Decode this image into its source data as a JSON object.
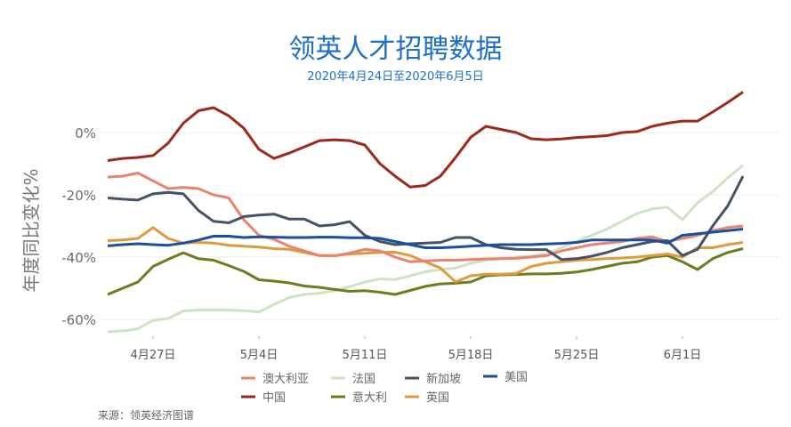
{
  "chart_data": {
    "type": "line",
    "title": "领英人才招聘数据",
    "subtitle": "2020年4月24日至2020年6月5日",
    "ylabel": "年度同比变化%",
    "xlabel": "",
    "x_start": "2020-04-24",
    "x_end": "2020-06-05",
    "x_ticks": [
      {
        "date": "2020-04-27",
        "label": "4月27日"
      },
      {
        "date": "2020-05-04",
        "label": "5月4日"
      },
      {
        "date": "2020-05-11",
        "label": "5月11日"
      },
      {
        "date": "2020-05-18",
        "label": "5月18日"
      },
      {
        "date": "2020-05-25",
        "label": "5月25日"
      },
      {
        "date": "2020-06-01",
        "label": "6月1日"
      }
    ],
    "y_ticks": [
      {
        "value": 0,
        "label": "0%"
      },
      {
        "value": -20,
        "label": "-20%"
      },
      {
        "value": -40,
        "label": "-40%"
      },
      {
        "value": -60,
        "label": "-60%"
      }
    ],
    "ylim": [
      -66,
      14
    ],
    "grid": "horizontal",
    "legend_placement": "bottom",
    "series": [
      {
        "name": "澳大利亚",
        "color": "#e8846e",
        "values": [
          -14.3,
          -14,
          -13,
          -15.5,
          -18,
          -17.6,
          -18,
          -20,
          -21,
          -28,
          -33,
          -34.3,
          -36.5,
          -38,
          -39.5,
          -39.6,
          -38.7,
          -37.5,
          -38,
          -40,
          -41.5,
          -41.2,
          -41,
          -41,
          -40.8,
          -40.6,
          -40.5,
          -40.4,
          -40,
          -39.5,
          -38,
          -37,
          -36,
          -35.5,
          -35,
          -34,
          -33.5,
          -35,
          -34,
          -33,
          -31.5,
          -30.5,
          -30
        ]
      },
      {
        "name": "中国",
        "color": "#9b2a1a",
        "values": [
          -9,
          -8.3,
          -8,
          -7.4,
          -3.4,
          3,
          7,
          8,
          5.4,
          1.4,
          -5.4,
          -8.3,
          -6.6,
          -4.6,
          -2.6,
          -2.3,
          -2.6,
          -4,
          -10,
          -14,
          -17.5,
          -17,
          -14,
          -8,
          -1.5,
          2,
          1,
          0,
          -2,
          -2.3,
          -2.1,
          -1.6,
          -1.3,
          -1,
          0,
          0.3,
          2,
          3,
          3.7,
          3.7,
          6.6,
          9.7,
          13
        ]
      },
      {
        "name": "法国",
        "color": "#cfe3c4",
        "values": [
          -64,
          -63.7,
          -63,
          -60.3,
          -59.7,
          -57.3,
          -57,
          -57,
          -57,
          -57.2,
          -57.6,
          -55.2,
          -53,
          -52,
          -51.6,
          -50.8,
          -49.5,
          -48,
          -47,
          -47.2,
          -46,
          -44.7,
          -44,
          -43.5,
          -42,
          -41,
          -40.5,
          -40,
          -39.6,
          -39,
          -37,
          -35,
          -33,
          -31,
          -28.5,
          -26,
          -24.5,
          -24,
          -28,
          -22.5,
          -19,
          -14.5,
          -10.5
        ]
      },
      {
        "name": "意大利",
        "color": "#6b7d1e",
        "values": [
          -52,
          -50,
          -48,
          -43,
          -40.7,
          -38.6,
          -40.5,
          -41,
          -42.7,
          -44.6,
          -47.3,
          -47.7,
          -48.3,
          -49.3,
          -49.7,
          -50.4,
          -51,
          -50.8,
          -51.3,
          -52,
          -50.7,
          -49.4,
          -48.6,
          -48.4,
          -48,
          -46,
          -45.7,
          -45.6,
          -45.4,
          -45.4,
          -45.2,
          -44.8,
          -44,
          -43,
          -42,
          -41.5,
          -40,
          -39.5,
          -41.5,
          -44,
          -40.5,
          -38.5,
          -37.3
        ]
      },
      {
        "name": "新加坡",
        "color": "#455366",
        "values": [
          -21,
          -21.4,
          -21.7,
          -19.7,
          -19.2,
          -19.7,
          -25,
          -28.5,
          -29,
          -27,
          -26.5,
          -26.2,
          -27.8,
          -27.8,
          -30,
          -29.6,
          -28.6,
          -33,
          -35,
          -36,
          -35.7,
          -35.5,
          -35.3,
          -33.7,
          -33.7,
          -36,
          -37,
          -37.5,
          -37.6,
          -37.6,
          -40.8,
          -40.5,
          -39.7,
          -38.5,
          -37,
          -36,
          -35,
          -34.7,
          -39.5,
          -37.5,
          -30,
          -23.5,
          -14
        ]
      },
      {
        "name": "英国",
        "color": "#e09a3e",
        "values": [
          -34.7,
          -34.5,
          -34,
          -30.5,
          -34,
          -35.5,
          -35.3,
          -35.5,
          -36.2,
          -36.5,
          -36.8,
          -37.3,
          -37.5,
          -38.5,
          -39.5,
          -39.5,
          -39,
          -38.8,
          -38.5,
          -38.4,
          -39.5,
          -41.5,
          -43.5,
          -48,
          -46,
          -45.5,
          -45.5,
          -45.3,
          -43,
          -42,
          -41.5,
          -41,
          -40.8,
          -40.5,
          -40.3,
          -40,
          -39.5,
          -39,
          -40,
          -37,
          -37,
          -36,
          -35.3
        ]
      },
      {
        "name": "美国",
        "color": "#1a4fa0",
        "values": [
          -36.4,
          -36,
          -35.7,
          -36,
          -36.2,
          -35.5,
          -34.5,
          -33.3,
          -33.3,
          -33.7,
          -33.5,
          -33.6,
          -33.7,
          -33.7,
          -33.6,
          -33.6,
          -33.8,
          -33.8,
          -34,
          -35,
          -36,
          -37,
          -37,
          -36.8,
          -36.5,
          -36.2,
          -36,
          -36,
          -36,
          -35.8,
          -35.6,
          -35.3,
          -34.5,
          -34.5,
          -34.5,
          -34.5,
          -34.5,
          -35.5,
          -33,
          -32.5,
          -32,
          -31.5,
          -31
        ]
      }
    ],
    "legend_order": [
      0,
      2,
      4,
      6,
      1,
      3,
      5
    ]
  },
  "source": "来源：领英经济图谱"
}
